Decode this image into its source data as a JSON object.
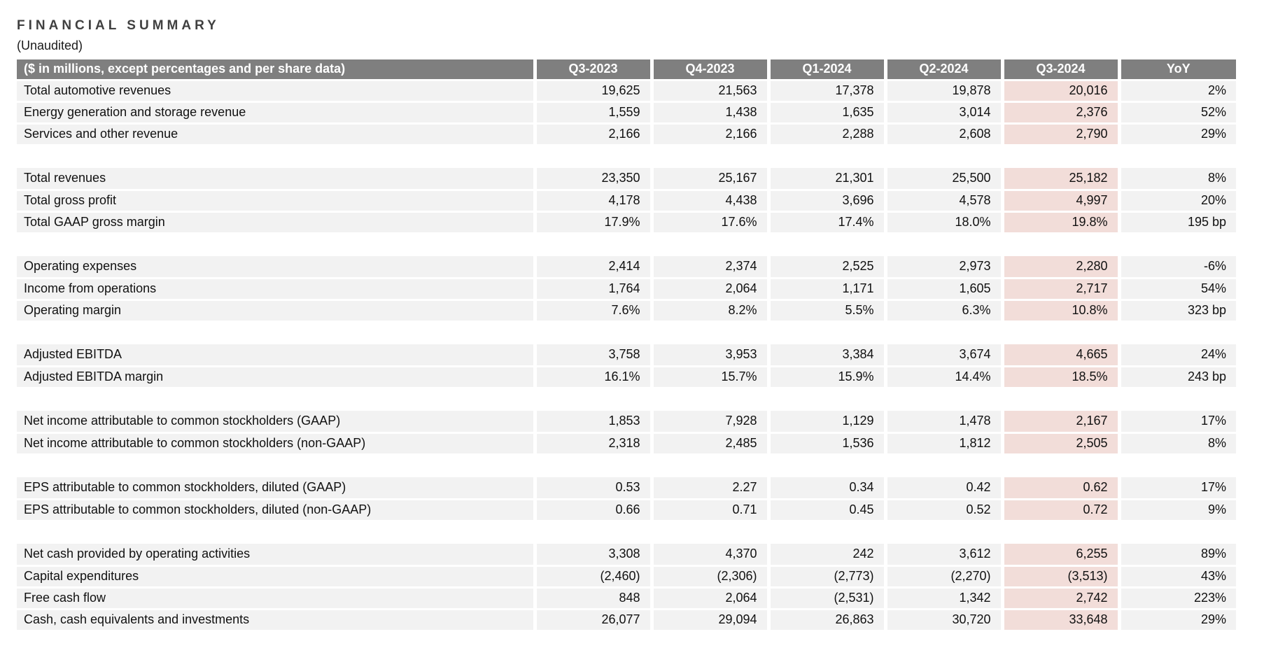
{
  "page": {
    "title": "FINANCIAL SUMMARY",
    "subtitle": "(Unaudited)"
  },
  "colors": {
    "header_bg": "#7f7f7f",
    "header_text": "#ffffff",
    "row_bg": "#f2f2f2",
    "highlight_bg": "#f2ddd9",
    "title_text": "#404040",
    "body_text": "#111111"
  },
  "table": {
    "header": {
      "label": "($ in millions, except percentages and per share data)",
      "columns": [
        "Q3-2023",
        "Q4-2023",
        "Q1-2024",
        "Q2-2024",
        "Q3-2024",
        "YoY"
      ],
      "highlighted_column": "Q3-2024"
    },
    "sections": [
      {
        "rows": [
          {
            "label": "Total automotive revenues",
            "values": [
              "19,625",
              "21,563",
              "17,378",
              "19,878",
              "20,016",
              "2%"
            ]
          },
          {
            "label": "Energy generation and storage revenue",
            "values": [
              "1,559",
              "1,438",
              "1,635",
              "3,014",
              "2,376",
              "52%"
            ]
          },
          {
            "label": "Services and other revenue",
            "values": [
              "2,166",
              "2,166",
              "2,288",
              "2,608",
              "2,790",
              "29%"
            ]
          }
        ]
      },
      {
        "rows": [
          {
            "label": "Total revenues",
            "values": [
              "23,350",
              "25,167",
              "21,301",
              "25,500",
              "25,182",
              "8%"
            ]
          },
          {
            "label": "Total gross profit",
            "values": [
              "4,178",
              "4,438",
              "3,696",
              "4,578",
              "4,997",
              "20%"
            ]
          },
          {
            "label": "Total GAAP gross margin",
            "values": [
              "17.9%",
              "17.6%",
              "17.4%",
              "18.0%",
              "19.8%",
              "195 bp"
            ]
          }
        ]
      },
      {
        "rows": [
          {
            "label": "Operating expenses",
            "values": [
              "2,414",
              "2,374",
              "2,525",
              "2,973",
              "2,280",
              "-6%"
            ]
          },
          {
            "label": "Income from operations",
            "values": [
              "1,764",
              "2,064",
              "1,171",
              "1,605",
              "2,717",
              "54%"
            ]
          },
          {
            "label": "Operating margin",
            "values": [
              "7.6%",
              "8.2%",
              "5.5%",
              "6.3%",
              "10.8%",
              "323 bp"
            ]
          }
        ]
      },
      {
        "rows": [
          {
            "label": "Adjusted EBITDA",
            "values": [
              "3,758",
              "3,953",
              "3,384",
              "3,674",
              "4,665",
              "24%"
            ]
          },
          {
            "label": "Adjusted EBITDA margin",
            "values": [
              "16.1%",
              "15.7%",
              "15.9%",
              "14.4%",
              "18.5%",
              "243 bp"
            ]
          }
        ]
      },
      {
        "rows": [
          {
            "label": "Net income attributable to common stockholders (GAAP)",
            "values": [
              "1,853",
              "7,928",
              "1,129",
              "1,478",
              "2,167",
              "17%"
            ]
          },
          {
            "label": "Net income attributable to common stockholders (non-GAAP)",
            "values": [
              "2,318",
              "2,485",
              "1,536",
              "1,812",
              "2,505",
              "8%"
            ]
          }
        ]
      },
      {
        "rows": [
          {
            "label": "EPS attributable to common stockholders, diluted (GAAP)",
            "values": [
              "0.53",
              "2.27",
              "0.34",
              "0.42",
              "0.62",
              "17%"
            ]
          },
          {
            "label": "EPS attributable to common stockholders, diluted (non-GAAP)",
            "values": [
              "0.66",
              "0.71",
              "0.45",
              "0.52",
              "0.72",
              "9%"
            ]
          }
        ]
      },
      {
        "rows": [
          {
            "label": "Net cash provided by operating activities",
            "values": [
              "3,308",
              "4,370",
              "242",
              "3,612",
              "6,255",
              "89%"
            ]
          },
          {
            "label": "Capital expenditures",
            "values": [
              "(2,460)",
              "(2,306)",
              "(2,773)",
              "(2,270)",
              "(3,513)",
              "43%"
            ]
          },
          {
            "label": "Free cash flow",
            "values": [
              "848",
              "2,064",
              "(2,531)",
              "1,342",
              "2,742",
              "223%"
            ]
          },
          {
            "label": "Cash, cash equivalents and investments",
            "values": [
              "26,077",
              "29,094",
              "26,863",
              "30,720",
              "33,648",
              "29%"
            ]
          }
        ]
      }
    ]
  }
}
